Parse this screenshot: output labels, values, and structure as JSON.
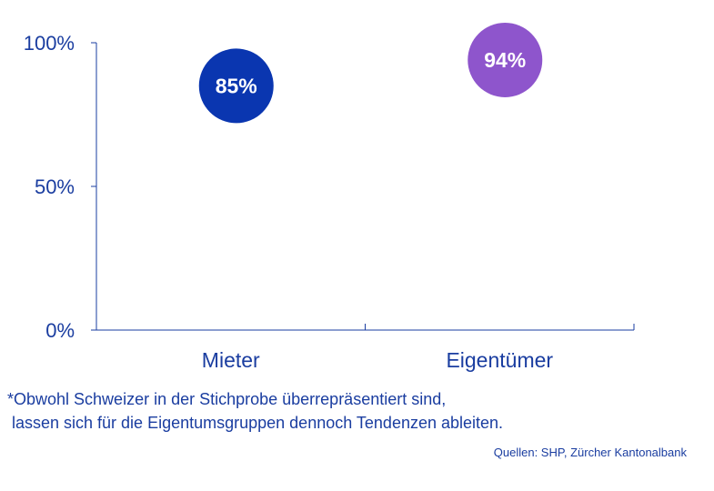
{
  "chart_data": {
    "type": "scatter",
    "categories": [
      "Mieter",
      "Eigentümer"
    ],
    "values": [
      85,
      94
    ],
    "value_labels": [
      "85%",
      "94%"
    ],
    "colors": [
      "#0a36b0",
      "#8e55cc"
    ],
    "ylim": [
      0,
      100
    ],
    "yticks": [
      0,
      50,
      100
    ],
    "ytick_labels": [
      "0%",
      "50%",
      "100%"
    ],
    "grid": false
  },
  "footnote": {
    "line1": "*Obwohl Schweizer in der Stichprobe überrepräsentiert sind,",
    "line2": " lassen sich für die Eigentumsgruppen dennoch Tendenzen ableiten."
  },
  "source": "Quellen: SHP, Zürcher Kantonalbank",
  "colors": {
    "axis": "#1a3da0",
    "text": "#1a3da0"
  }
}
